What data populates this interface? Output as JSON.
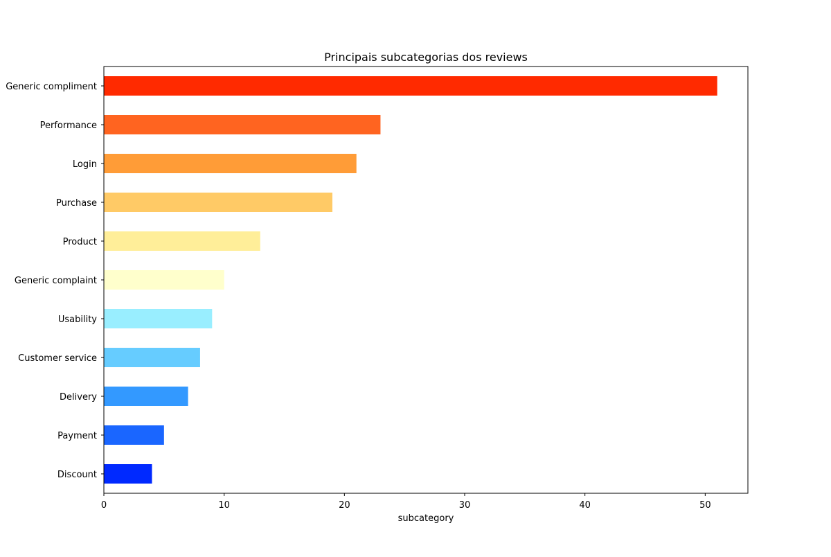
{
  "chart_data": {
    "type": "bar",
    "orientation": "horizontal",
    "title": "Principais subcategorias dos reviews",
    "xlabel": "subcategory",
    "ylabel": "",
    "xlim": [
      0,
      53.55
    ],
    "xticks": [
      0,
      10,
      20,
      30,
      40,
      50
    ],
    "grid": false,
    "legend": "none",
    "categories": [
      "Generic compliment",
      "Performance",
      "Login",
      "Purchase",
      "Product",
      "Generic complaint",
      "Usability",
      "Customer service",
      "Delivery",
      "Payment",
      "Discount"
    ],
    "values": [
      51,
      23,
      21,
      19,
      13,
      10,
      9,
      8,
      7,
      5,
      4
    ],
    "colors": [
      "#ff2a00",
      "#ff6420",
      "#ff9c37",
      "#ffca66",
      "#ffee99",
      "#ffffcc",
      "#99eeff",
      "#66ccff",
      "#3399ff",
      "#1a66ff",
      "#0029ff"
    ]
  }
}
